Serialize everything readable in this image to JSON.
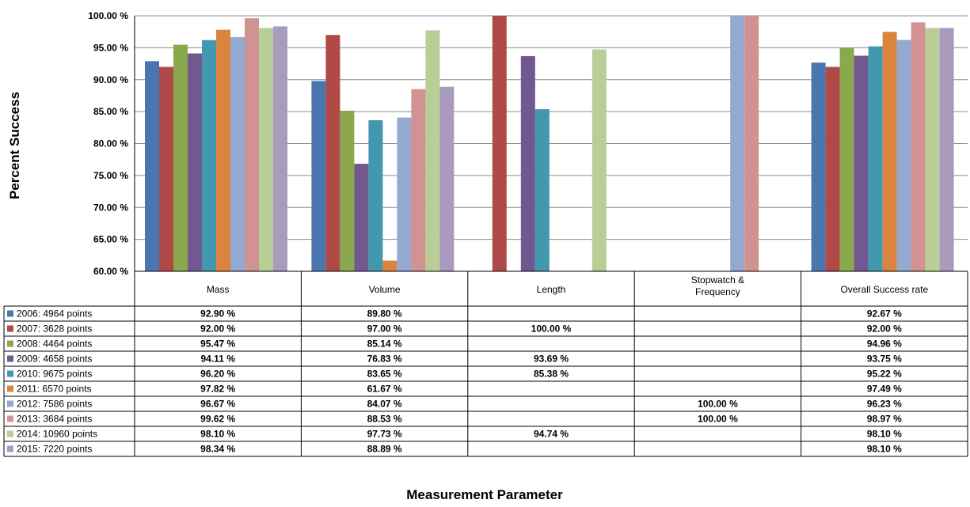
{
  "chart_data": {
    "type": "bar",
    "ylabel": "Percent Success",
    "xlabel": "Measurement Parameter",
    "ylim": [
      60,
      100
    ],
    "y_ticks": [
      60,
      65,
      70,
      75,
      80,
      85,
      90,
      95,
      100
    ],
    "y_tick_labels": [
      "60.00 %",
      "65.00 %",
      "70.00 %",
      "75.00 %",
      "80.00 %",
      "85.00 %",
      "90.00 %",
      "95.00 %",
      "100.00 %"
    ],
    "grid": true,
    "legend": "data-table-below",
    "categories": [
      "Mass",
      "Volume",
      "Length",
      "Stopwatch & Frequency",
      "Overall Success rate"
    ],
    "series": [
      {
        "name": "2006: 4964 points",
        "color": "#4a76b0",
        "values": [
          92.9,
          89.8,
          null,
          null,
          92.67
        ],
        "labels": [
          "92.90 %",
          "89.80 %",
          "",
          "",
          "92.67 %"
        ]
      },
      {
        "name": "2007: 3628 points",
        "color": "#b04a48",
        "values": [
          92.0,
          97.0,
          100.0,
          null,
          92.0
        ],
        "labels": [
          "92.00 %",
          "97.00 %",
          "100.00 %",
          "",
          "92.00 %"
        ]
      },
      {
        "name": "2008: 4464 points",
        "color": "#8aa84c",
        "values": [
          95.47,
          85.14,
          null,
          null,
          94.96
        ],
        "labels": [
          "95.47 %",
          "85.14 %",
          "",
          "",
          "94.96 %"
        ]
      },
      {
        "name": "2009: 4658 points",
        "color": "#71588f",
        "values": [
          94.11,
          76.83,
          93.69,
          null,
          93.75
        ],
        "labels": [
          "94.11 %",
          "76.83 %",
          "93.69 %",
          "",
          "93.75 %"
        ]
      },
      {
        "name": "2010: 9675 points",
        "color": "#4198af",
        "values": [
          96.2,
          83.65,
          85.38,
          null,
          95.22
        ],
        "labels": [
          "96.20 %",
          "83.65 %",
          "85.38 %",
          "",
          "95.22 %"
        ]
      },
      {
        "name": "2011: 6570 points",
        "color": "#db843d",
        "values": [
          97.82,
          61.67,
          null,
          null,
          97.49
        ],
        "labels": [
          "97.82 %",
          "61.67 %",
          "",
          "",
          "97.49 %"
        ]
      },
      {
        "name": "2012: 7586 points",
        "color": "#93a9cf",
        "values": [
          96.67,
          84.07,
          null,
          100.0,
          96.23
        ],
        "labels": [
          "96.67 %",
          "84.07 %",
          "",
          "100.00 %",
          "96.23 %"
        ]
      },
      {
        "name": "2013: 3684 points",
        "color": "#d19392",
        "values": [
          99.62,
          88.53,
          null,
          100.0,
          98.97
        ],
        "labels": [
          "99.62 %",
          "88.53 %",
          "",
          "100.00 %",
          "98.97 %"
        ]
      },
      {
        "name": "2014: 10960 points",
        "color": "#b9cd96",
        "values": [
          98.1,
          97.73,
          94.74,
          null,
          98.1
        ],
        "labels": [
          "98.10 %",
          "97.73 %",
          "94.74 %",
          "",
          "98.10 %"
        ]
      },
      {
        "name": "2015: 7220 points",
        "color": "#a99bbd",
        "values": [
          98.34,
          88.89,
          null,
          null,
          98.1
        ],
        "labels": [
          "98.34 %",
          "88.89 %",
          "",
          "",
          "98.10 %"
        ]
      }
    ]
  }
}
